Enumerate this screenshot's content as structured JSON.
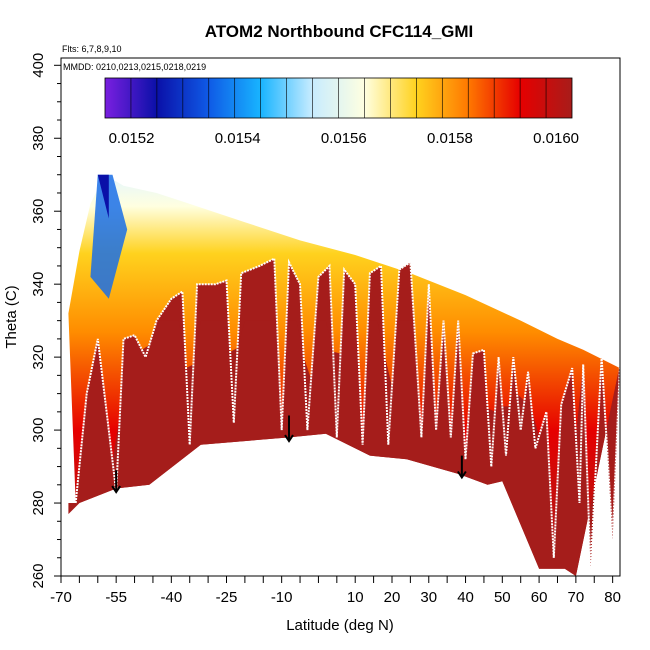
{
  "chart_data": {
    "type": "heatmap",
    "title": "ATOM2 Northbound CFC114_GMI",
    "flights_note": "Flts: 6,7,8,9,10",
    "dates_note": "MMDD: 0210,0213,0215,0218,0219",
    "xlabel": "Latitude (deg N)",
    "ylabel": "Theta (C)",
    "xlim": [
      -70,
      82
    ],
    "ylim": [
      260,
      402
    ],
    "x_ticks": [
      -70,
      -55,
      -40,
      -25,
      -10,
      10,
      20,
      30,
      40,
      50,
      60,
      70,
      80
    ],
    "x_tick_labels": [
      "-70",
      "-55",
      "-40",
      "-25",
      "-10",
      "10",
      "20",
      "30",
      "40",
      "50",
      "60",
      "70",
      "80"
    ],
    "x_minor_ticks": [
      -65,
      -60,
      -50,
      -45,
      -35,
      -30,
      -20,
      -15,
      -5,
      0,
      5,
      15,
      25,
      35,
      45,
      55,
      65,
      75
    ],
    "y_ticks": [
      260,
      280,
      300,
      320,
      340,
      360,
      380,
      400
    ],
    "y_tick_labels": [
      "260",
      "280",
      "300",
      "320",
      "340",
      "360",
      "380",
      "400"
    ],
    "colorbar": {
      "range": [
        0.01515,
        0.01603
      ],
      "tick_values": [
        0.0152,
        0.0154,
        0.0156,
        0.0158,
        0.016
      ],
      "tick_labels": [
        "0.0152",
        "0.0154",
        "0.0156",
        "0.0158",
        "0.0160"
      ],
      "colors": [
        "#7a1fe0",
        "#0a10a8",
        "#0f5ae6",
        "#18b4ff",
        "#c8ecff",
        "#ffffe0",
        "#ffd21e",
        "#ff7800",
        "#e60000",
        "#a81c1a"
      ]
    },
    "dark_region_color": "#a51d1b",
    "bottom_envelope": [
      [
        -68,
        277
      ],
      [
        -65,
        280
      ],
      [
        -55,
        284
      ],
      [
        -46,
        285
      ],
      [
        -32,
        296
      ],
      [
        -8,
        298
      ],
      [
        2,
        299
      ],
      [
        14,
        293
      ],
      [
        24,
        292
      ],
      [
        38,
        288
      ],
      [
        46,
        285
      ],
      [
        50,
        286
      ],
      [
        60,
        262
      ],
      [
        67,
        262
      ],
      [
        70,
        260
      ]
    ],
    "top_envelope": [
      [
        -68,
        332
      ],
      [
        -65,
        349
      ],
      [
        -62,
        362
      ],
      [
        -58,
        370
      ],
      [
        -53,
        367
      ],
      [
        -44,
        365
      ],
      [
        -35,
        362
      ],
      [
        -20,
        357
      ],
      [
        -5,
        352
      ],
      [
        10,
        348
      ],
      [
        25,
        343
      ],
      [
        40,
        337
      ],
      [
        55,
        330
      ],
      [
        65,
        325
      ],
      [
        72,
        322
      ],
      [
        82,
        317
      ]
    ],
    "flight_track": [
      [
        -66,
        280
      ],
      [
        -63,
        310
      ],
      [
        -60,
        325
      ],
      [
        -57,
        300
      ],
      [
        -55,
        283
      ],
      [
        -53,
        325
      ],
      [
        -50,
        326
      ],
      [
        -47,
        320
      ],
      [
        -44,
        330
      ],
      [
        -40,
        336
      ],
      [
        -37,
        338
      ],
      [
        -35,
        296
      ],
      [
        -33,
        340
      ],
      [
        -28,
        340
      ],
      [
        -25,
        341
      ],
      [
        -23,
        302
      ],
      [
        -21,
        343
      ],
      [
        -16,
        345
      ],
      [
        -12,
        347
      ],
      [
        -10,
        300
      ],
      [
        -8,
        346
      ],
      [
        -5,
        340
      ],
      [
        -3,
        300
      ],
      [
        0,
        342
      ],
      [
        3,
        345
      ],
      [
        5,
        298
      ],
      [
        7,
        344
      ],
      [
        10,
        340
      ],
      [
        12,
        296
      ],
      [
        14,
        343
      ],
      [
        17,
        345
      ],
      [
        19,
        296
      ],
      [
        22,
        344
      ],
      [
        25,
        346
      ],
      [
        28,
        298
      ],
      [
        30,
        340
      ],
      [
        32,
        300
      ],
      [
        34,
        330
      ],
      [
        36,
        298
      ],
      [
        38,
        330
      ],
      [
        40,
        292
      ],
      [
        42,
        321
      ],
      [
        45,
        322
      ],
      [
        47,
        290
      ],
      [
        49,
        320
      ],
      [
        51,
        293
      ],
      [
        53,
        320
      ],
      [
        55,
        300
      ],
      [
        57,
        316
      ],
      [
        59,
        295
      ],
      [
        62,
        305
      ],
      [
        64,
        265
      ],
      [
        66,
        307
      ],
      [
        69,
        317
      ],
      [
        71,
        280
      ],
      [
        72,
        318
      ],
      [
        74,
        262
      ],
      [
        77,
        320
      ],
      [
        80,
        270
      ],
      [
        82,
        318
      ]
    ],
    "arrows": [
      {
        "lat": -55,
        "theta_top": 289,
        "theta_bottom": 283
      },
      {
        "lat": -8,
        "theta_top": 304,
        "theta_bottom": 297
      },
      {
        "lat": 39,
        "theta_top": 293,
        "theta_bottom": 287
      }
    ]
  }
}
